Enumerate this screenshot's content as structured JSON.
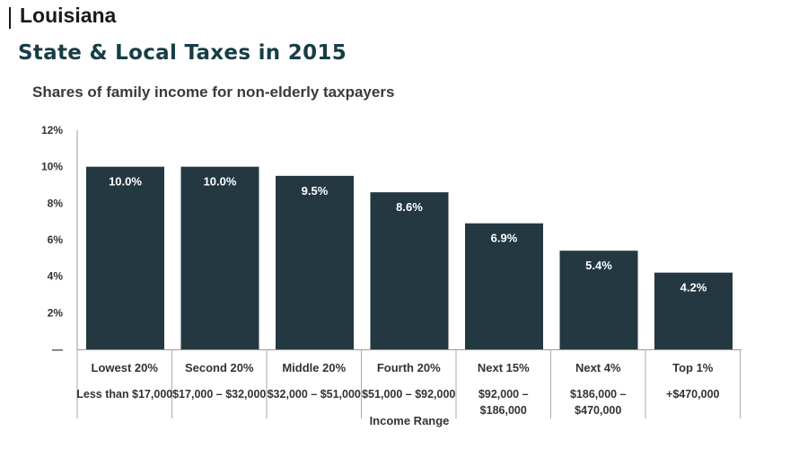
{
  "header": {
    "state": "Louisiana",
    "title": "State & Local Taxes in 2015"
  },
  "chart_data": {
    "type": "bar",
    "title": "Shares of family income for non-elderly taxpayers",
    "xlabel": "Income Range",
    "ylabel": "",
    "ylim": [
      0,
      12
    ],
    "yticks": [
      "—",
      "2%",
      "4%",
      "6%",
      "8%",
      "10%",
      "12%"
    ],
    "categories": [
      "Lowest 20%",
      "Second 20%",
      "Middle 20%",
      "Fourth 20%",
      "Next 15%",
      "Next 4%",
      "Top 1%"
    ],
    "ranges": [
      [
        "Less than $17,000"
      ],
      [
        "$17,000 – $32,000"
      ],
      [
        "$32,000 – $51,000"
      ],
      [
        "$51,000 – $92,000"
      ],
      [
        "$92,000 –",
        "$186,000"
      ],
      [
        "$186,000 –",
        "$470,000"
      ],
      [
        "+$470,000"
      ]
    ],
    "values": [
      10.0,
      10.0,
      9.5,
      8.6,
      6.9,
      5.4,
      4.2
    ],
    "value_labels": [
      "10.0%",
      "10.0%",
      "9.5%",
      "8.6%",
      "6.9%",
      "5.4%",
      "4.2%"
    ],
    "bar_color": "#233841",
    "grid": false
  }
}
